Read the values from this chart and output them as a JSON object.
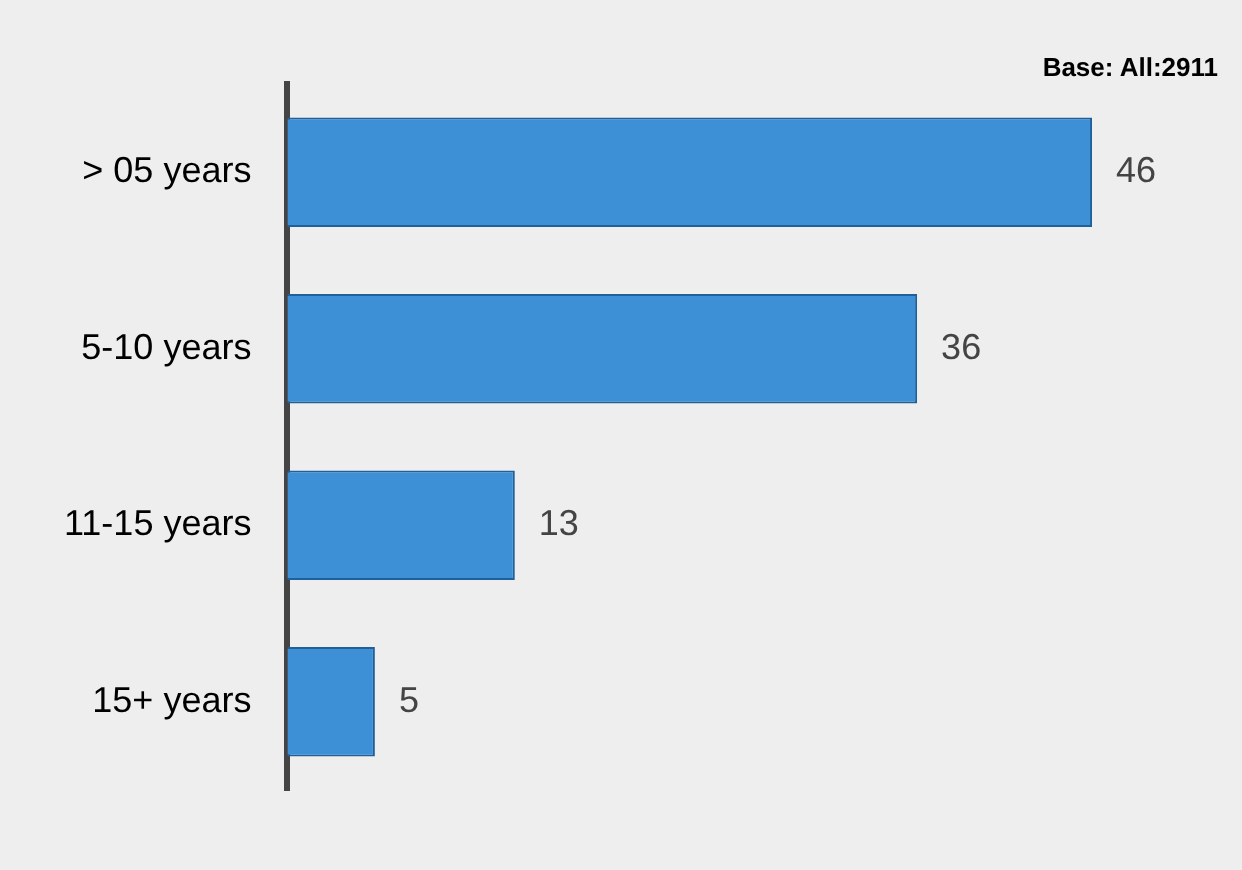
{
  "chart_data": {
    "type": "bar",
    "orientation": "horizontal",
    "categories": [
      "> 05 years",
      "5-10 years",
      "11-15 years",
      "15+ years"
    ],
    "values": [
      46,
      36,
      13,
      5
    ],
    "color": "#3d8fd6",
    "data_labels": true,
    "grid": false,
    "legend": false,
    "annotations": [
      "Base: All:2911"
    ]
  }
}
